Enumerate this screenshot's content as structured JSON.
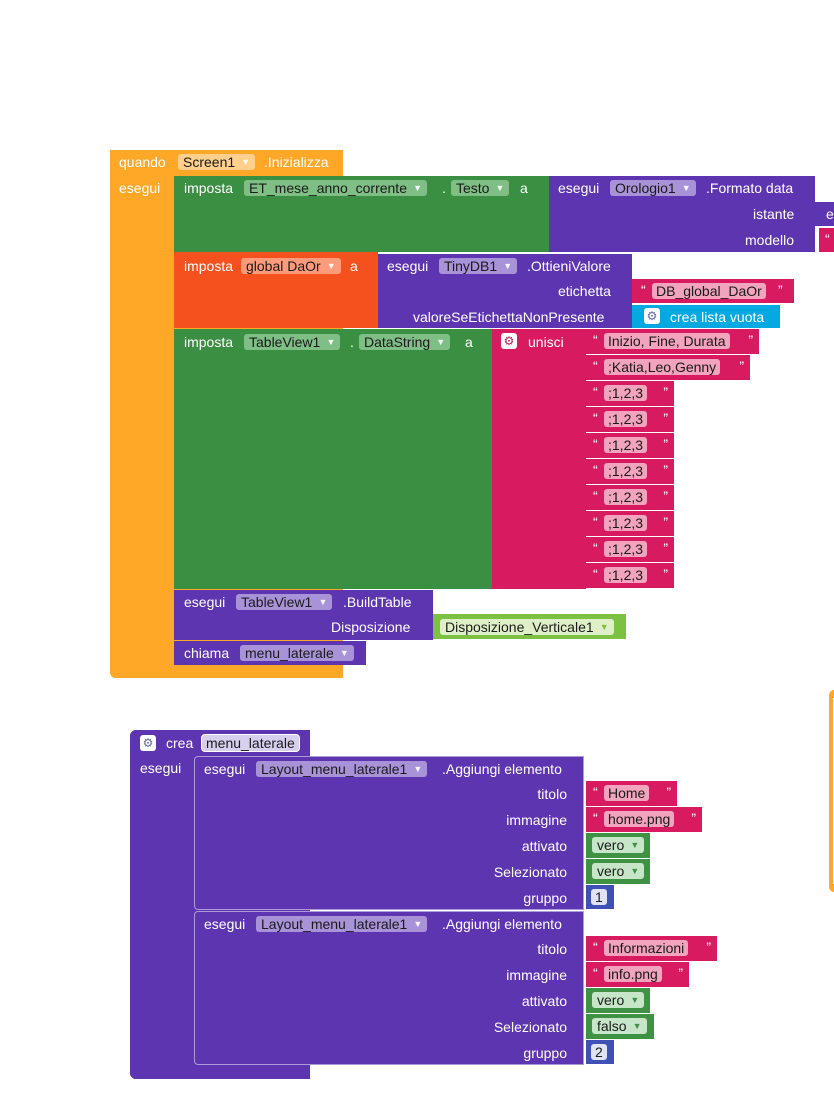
{
  "screen_init": {
    "quando": "quando",
    "screen_dd": "Screen1",
    "event": ".Inizializza",
    "esegui": "esegui",
    "set1": {
      "imposta": "imposta",
      "component": "ET_mese_anno_corrente",
      "dot": ".",
      "property": "Testo",
      "a": "a",
      "call_esegui": "esegui",
      "call_component": "Orologio1",
      "call_method": ".Formato data",
      "arg1_label": "istante",
      "arg1_fragment": "e",
      "arg2_label": "modello",
      "arg2_fragment": "“"
    },
    "set2": {
      "imposta": "imposta",
      "variable": "global DaOr",
      "a": "a",
      "call_esegui": "esegui",
      "call_component": "TinyDB1",
      "call_method": ".OttieniValore",
      "arg1_label": "etichetta",
      "arg1_value": "DB_global_DaOr",
      "arg2_label": "valoreSeEtichettaNonPresente",
      "arg2_value": "crea lista vuota"
    },
    "set3": {
      "imposta": "imposta",
      "component": "TableView1",
      "dot": ".",
      "property": "DataString",
      "a": "a",
      "join_label": "unisci",
      "strings": [
        "Inizio, Fine, Durata",
        ";Katia,Leo,Genny",
        ";1,2,3",
        ";1,2,3",
        ";1,2,3",
        ";1,2,3",
        ";1,2,3",
        ";1,2,3",
        ";1,2,3",
        ";1,2,3"
      ]
    },
    "call_build": {
      "esegui": "esegui",
      "component": "TableView1",
      "method": ".BuildTable",
      "arg_label": "Disposizione",
      "arg_value": "Disposizione_Verticale1"
    },
    "call_menu": {
      "chiama": "chiama",
      "procedure": "menu_laterale"
    }
  },
  "procedure": {
    "crea": "crea",
    "name": "menu_laterale",
    "esegui": "esegui",
    "calls": [
      {
        "esegui": "esegui",
        "component": "Layout_menu_laterale1",
        "method": ".Aggiungi elemento",
        "labels": [
          "titolo",
          "immagine",
          "attivato",
          "Selezionato",
          "gruppo"
        ],
        "titolo": "Home",
        "immagine": "home.png",
        "attivato": "vero",
        "selezionato": "vero",
        "gruppo": "1"
      },
      {
        "esegui": "esegui",
        "component": "Layout_menu_laterale1",
        "method": ".Aggiungi elemento",
        "labels": [
          "titolo",
          "immagine",
          "attivato",
          "Selezionato",
          "gruppo"
        ],
        "titolo": "Informazioni",
        "immagine": "info.png",
        "attivato": "vero",
        "selezionato": "falso",
        "gruppo": "2"
      }
    ]
  },
  "colors": {
    "event": "#ffa726",
    "set": "#3b8f43",
    "component_call": "#5e35b1",
    "variable": "#f4511e",
    "text": "#d81b60",
    "list": "#03a9e0",
    "logic": "#3f9143",
    "math": "#3f51b5"
  }
}
